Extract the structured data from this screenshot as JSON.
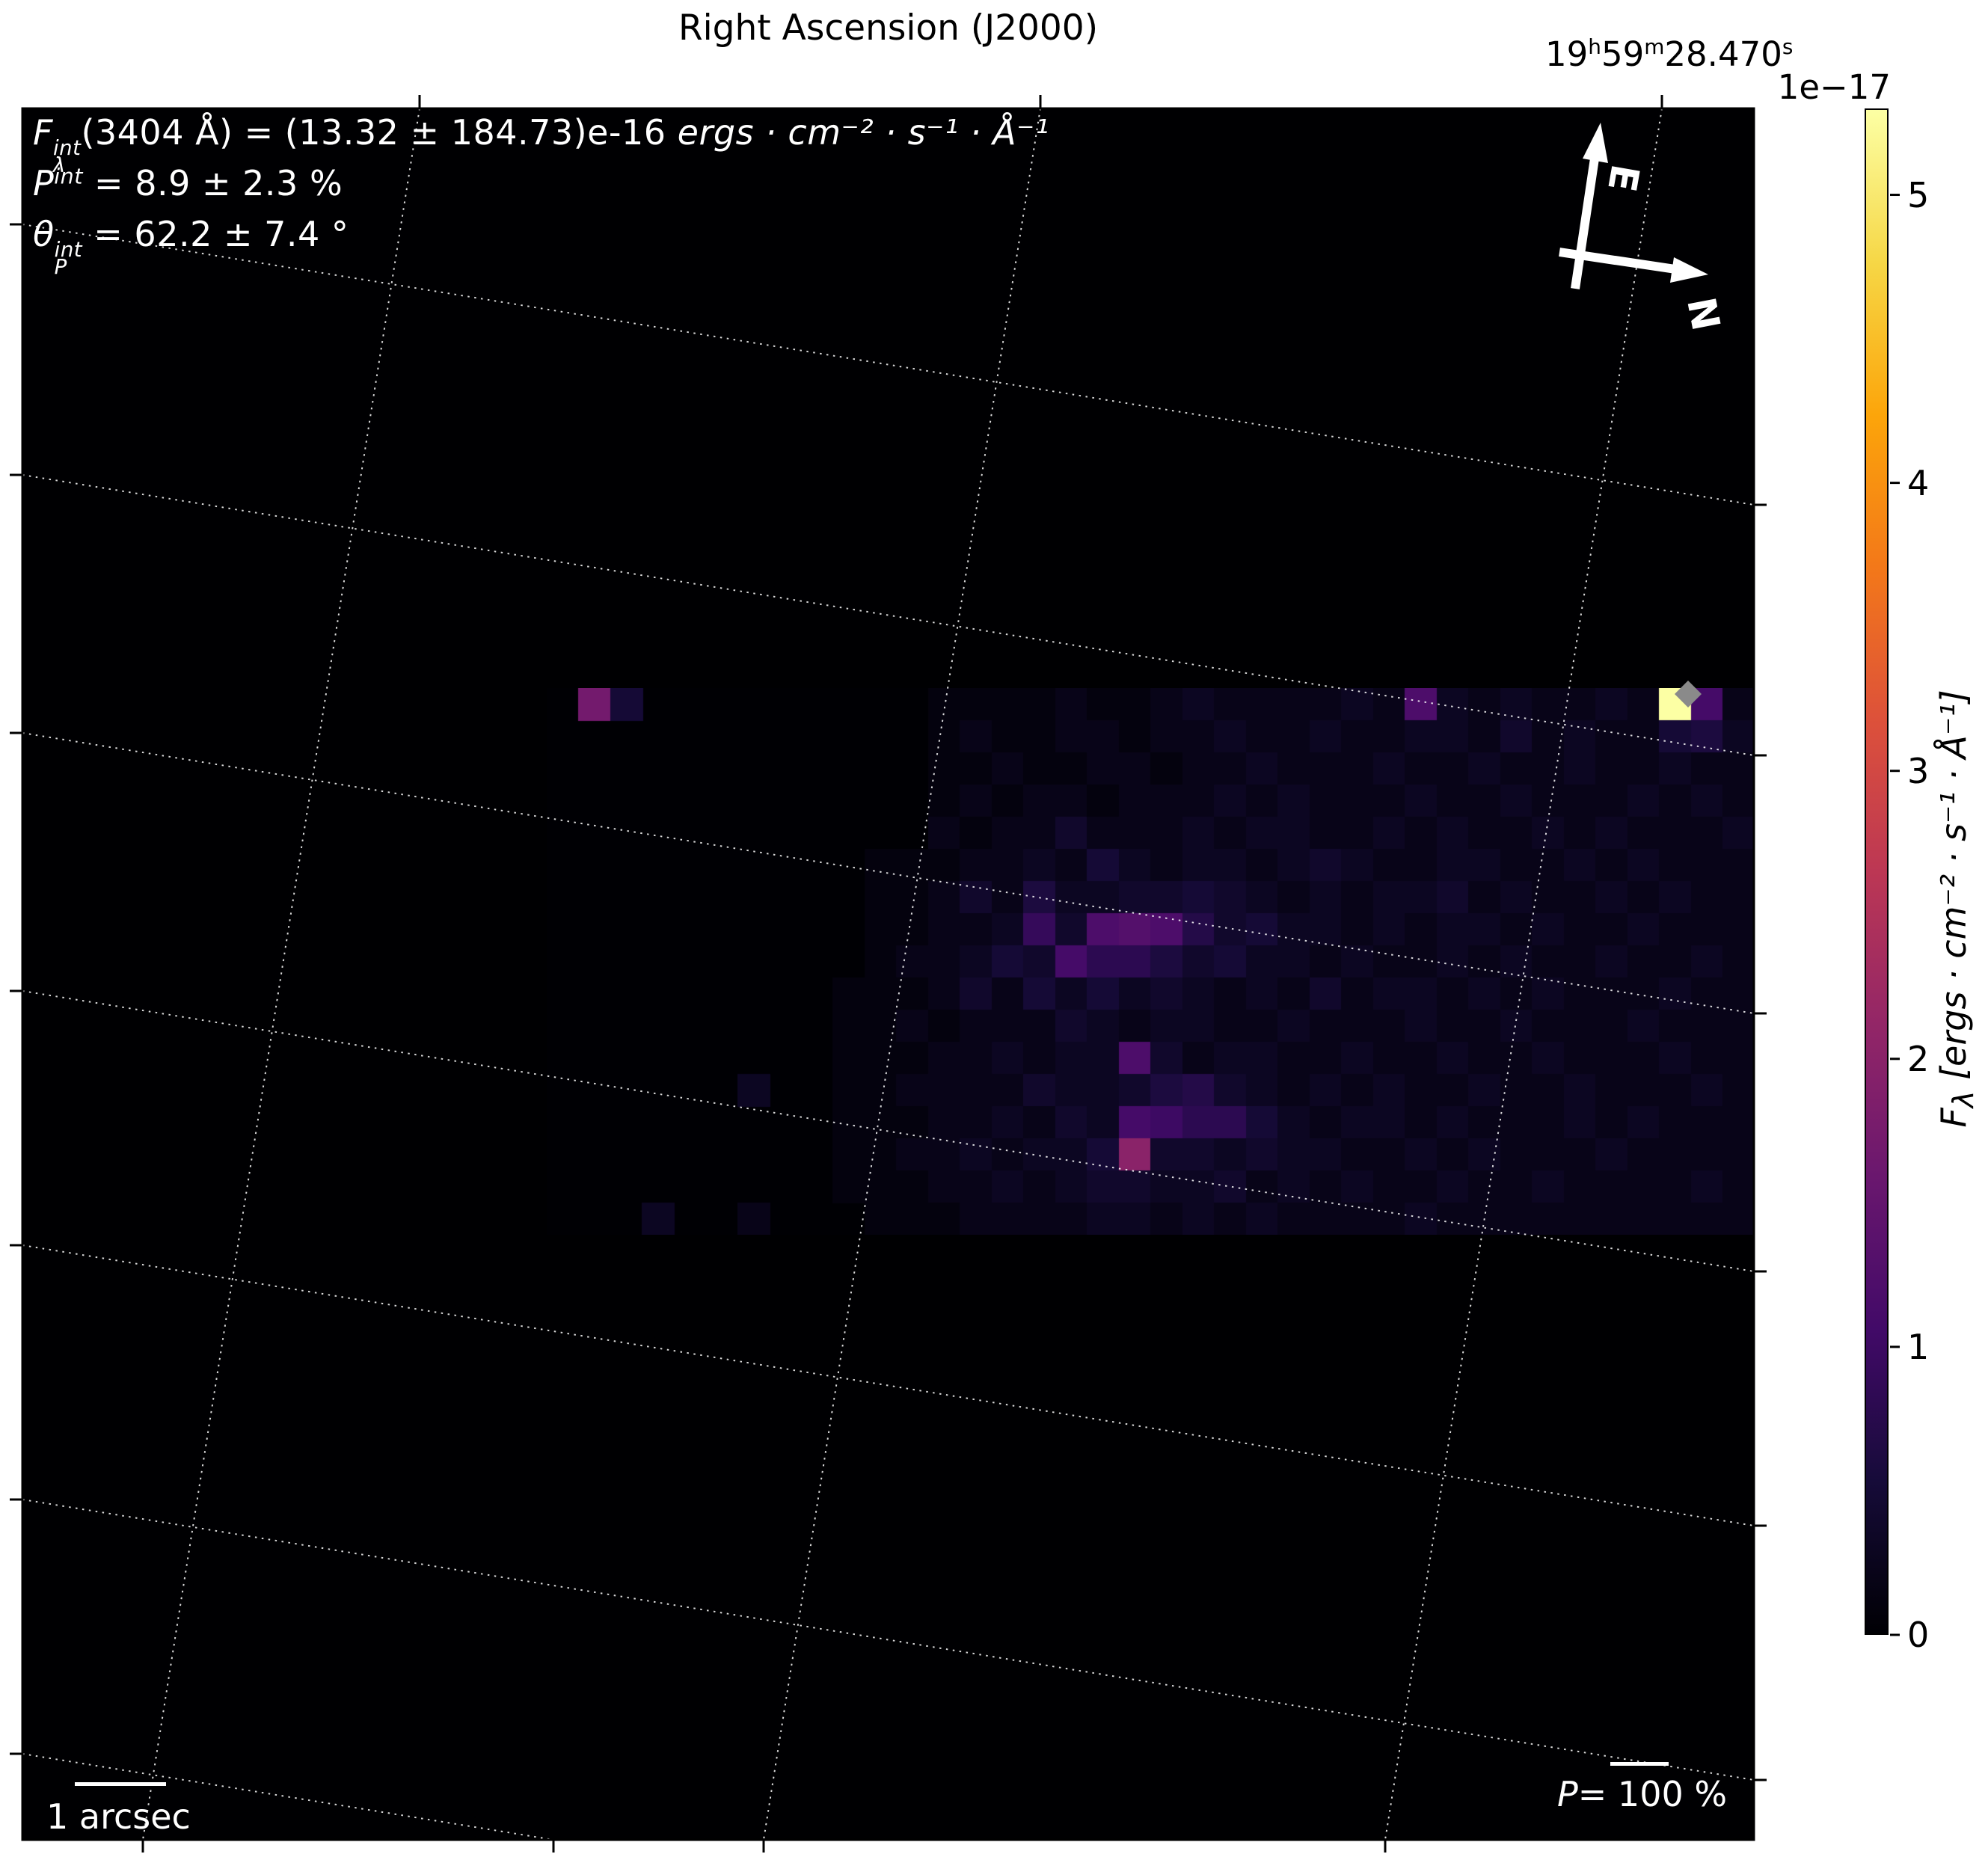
{
  "title": "Right Ascension (J2000)",
  "ra_tick": {
    "h": "19",
    "h_unit": "h",
    "m": "59",
    "m_unit": "m",
    "s": "28.470",
    "s_unit": "s"
  },
  "annotations": {
    "flux": {
      "sym": "F",
      "sup": "int",
      "sub": "λ",
      "rest": "(3404 Å) = (13.32 ± 184.73)e-16 ",
      "units": "ergs · cm⁻² · s⁻¹ · Å⁻¹"
    },
    "pol": {
      "sym": "P",
      "sup": "int",
      "rest": " = 8.9 ± 2.3 %"
    },
    "theta": {
      "sym": "θ",
      "sup": "int",
      "sub": "P",
      "rest": " = 62.2 ± 7.4 °"
    }
  },
  "compass": {
    "east_label": "E",
    "north_label": "N"
  },
  "scalebar": {
    "label": "1 arcsec"
  },
  "pol_scalebar": {
    "sym": "P",
    "eq": "= ",
    "value": "100",
    "suffix": " %"
  },
  "colorbar": {
    "offset_label": "1e−17",
    "ticks": [
      0,
      1,
      2,
      3,
      4,
      5
    ],
    "label_sym": "F",
    "label_sub": "λ",
    "label_units": " [ergs · cm⁻² · s⁻¹ · Å⁻¹]"
  },
  "chart_data": {
    "type": "heatmap",
    "title": "Right Ascension (J2000)",
    "colorbar_label": "F_lambda [ergs · cm⁻² · s⁻¹ · Å⁻¹]",
    "colormap": "inferno",
    "value_unit_1e18": "flux values are in units of 1e-18 ergs·cm⁻²·s⁻¹·Å⁻¹",
    "vmin_1e18": 0,
    "vmax_1e18": 53,
    "ra_axis_tick": "19h59m28.470s",
    "integrated_flux": "(13.32 ± 184.73)e-16 ergs·cm⁻²·s⁻¹·Å⁻¹ at 3404 Å",
    "integrated_polarization_percent": "8.9 ± 2.3",
    "polarization_angle_deg": "62.2 ± 7.4",
    "n_cols": 38,
    "n_rows": 17,
    "marker": {
      "shape": "diamond",
      "color": "#8a8a8a",
      "cell_col": 35,
      "cell_row": 0
    },
    "colormap_stops": [
      [
        0.0,
        "#000004"
      ],
      [
        0.1,
        "#160b39"
      ],
      [
        0.2,
        "#420a68"
      ],
      [
        0.3,
        "#6a176e"
      ],
      [
        0.4,
        "#932667"
      ],
      [
        0.5,
        "#bc3754"
      ],
      [
        0.6,
        "#dd513a"
      ],
      [
        0.7,
        "#f37819"
      ],
      [
        0.8,
        "#fca50a"
      ],
      [
        0.9,
        "#f6d746"
      ],
      [
        1.0,
        "#fcffa4"
      ]
    ],
    "values": [
      [
        0,
        17,
        5,
        0,
        0,
        0,
        0,
        0,
        0,
        0,
        0,
        0,
        1,
        1,
        1,
        1,
        2,
        1,
        1,
        2,
        3,
        2,
        2,
        2,
        2,
        3,
        2,
        12,
        3,
        2,
        3,
        2,
        2,
        3,
        2,
        53,
        11,
        2
      ],
      [
        0,
        0,
        0,
        0,
        0,
        0,
        0,
        0,
        0,
        0,
        0,
        0,
        1,
        2,
        1,
        1,
        2,
        2,
        1,
        2,
        2,
        3,
        2,
        2,
        3,
        2,
        2,
        3,
        3,
        2,
        4,
        2,
        3,
        2,
        2,
        5,
        6,
        3
      ],
      [
        0,
        0,
        0,
        0,
        0,
        0,
        0,
        0,
        0,
        0,
        0,
        0,
        1,
        1,
        2,
        1,
        1,
        2,
        2,
        1,
        2,
        2,
        3,
        2,
        2,
        2,
        3,
        2,
        2,
        3,
        2,
        2,
        3,
        2,
        2,
        3,
        2,
        2
      ],
      [
        0,
        0,
        0,
        0,
        0,
        0,
        0,
        0,
        0,
        0,
        0,
        0,
        1,
        2,
        1,
        2,
        2,
        1,
        2,
        2,
        2,
        3,
        2,
        3,
        2,
        2,
        2,
        3,
        2,
        2,
        3,
        2,
        2,
        2,
        3,
        2,
        3,
        2
      ],
      [
        0,
        0,
        0,
        0,
        0,
        0,
        0,
        0,
        0,
        0,
        0,
        0,
        2,
        1,
        2,
        2,
        4,
        2,
        2,
        2,
        3,
        2,
        3,
        3,
        2,
        2,
        3,
        2,
        3,
        2,
        2,
        3,
        2,
        3,
        2,
        2,
        2,
        3
      ],
      [
        0,
        0,
        0,
        0,
        0,
        0,
        0,
        0,
        0,
        0,
        1,
        1,
        1,
        2,
        2,
        3,
        2,
        5,
        3,
        2,
        3,
        3,
        2,
        3,
        4,
        3,
        2,
        2,
        3,
        3,
        2,
        2,
        3,
        2,
        3,
        2,
        2,
        2
      ],
      [
        0,
        0,
        0,
        0,
        0,
        0,
        0,
        0,
        0,
        0,
        1,
        1,
        2,
        4,
        2,
        6,
        3,
        3,
        4,
        4,
        5,
        4,
        3,
        2,
        3,
        2,
        3,
        3,
        4,
        2,
        3,
        2,
        2,
        3,
        2,
        3,
        2,
        2
      ],
      [
        0,
        0,
        0,
        0,
        0,
        0,
        0,
        0,
        0,
        0,
        1,
        1,
        2,
        2,
        3,
        9,
        4,
        12,
        13,
        12,
        7,
        4,
        5,
        3,
        3,
        2,
        3,
        2,
        3,
        3,
        2,
        3,
        2,
        2,
        3,
        2,
        2,
        2
      ],
      [
        0,
        0,
        0,
        0,
        0,
        0,
        0,
        0,
        0,
        0,
        1,
        2,
        2,
        3,
        5,
        4,
        11,
        8,
        8,
        6,
        4,
        5,
        3,
        3,
        2,
        3,
        2,
        2,
        3,
        2,
        3,
        2,
        2,
        3,
        2,
        2,
        3,
        2
      ],
      [
        0,
        0,
        0,
        0,
        0,
        0,
        0,
        0,
        0,
        1,
        1,
        1,
        2,
        4,
        2,
        5,
        3,
        5,
        3,
        4,
        3,
        2,
        3,
        2,
        4,
        2,
        3,
        3,
        2,
        3,
        2,
        3,
        2,
        2,
        2,
        3,
        2,
        2
      ],
      [
        0,
        0,
        0,
        0,
        0,
        0,
        0,
        0,
        0,
        1,
        1,
        2,
        1,
        2,
        2,
        2,
        4,
        3,
        2,
        3,
        3,
        2,
        2,
        3,
        2,
        2,
        2,
        3,
        2,
        2,
        3,
        2,
        2,
        2,
        3,
        2,
        2,
        2
      ],
      [
        0,
        0,
        0,
        0,
        0,
        0,
        0,
        0,
        0,
        1,
        1,
        1,
        2,
        2,
        3,
        2,
        3,
        3,
        12,
        4,
        2,
        3,
        3,
        2,
        2,
        3,
        2,
        2,
        3,
        2,
        2,
        3,
        2,
        2,
        2,
        3,
        2,
        2
      ],
      [
        0,
        0,
        0,
        0,
        0,
        0,
        3,
        0,
        0,
        1,
        1,
        2,
        2,
        2,
        2,
        4,
        3,
        3,
        4,
        6,
        7,
        4,
        3,
        2,
        3,
        2,
        3,
        2,
        2,
        3,
        2,
        2,
        3,
        2,
        2,
        2,
        3,
        2
      ],
      [
        0,
        0,
        0,
        0,
        0,
        0,
        0,
        0,
        0,
        1,
        1,
        1,
        2,
        2,
        3,
        2,
        4,
        3,
        11,
        10,
        8,
        8,
        5,
        3,
        2,
        3,
        3,
        2,
        3,
        2,
        2,
        2,
        3,
        2,
        3,
        2,
        2,
        2
      ],
      [
        0,
        0,
        0,
        0,
        0,
        0,
        0,
        0,
        0,
        1,
        1,
        2,
        2,
        3,
        2,
        3,
        3,
        5,
        20,
        4,
        4,
        3,
        4,
        3,
        3,
        2,
        2,
        3,
        2,
        3,
        2,
        2,
        2,
        3,
        2,
        2,
        2,
        2
      ],
      [
        0,
        0,
        0,
        0,
        0,
        0,
        0,
        0,
        0,
        1,
        1,
        1,
        2,
        2,
        3,
        2,
        3,
        4,
        4,
        3,
        3,
        4,
        2,
        3,
        2,
        3,
        2,
        2,
        3,
        2,
        2,
        3,
        2,
        2,
        2,
        2,
        3,
        2
      ],
      [
        0,
        0,
        0,
        3,
        0,
        0,
        2,
        0,
        0,
        0,
        1,
        1,
        1,
        2,
        2,
        2,
        2,
        3,
        3,
        2,
        3,
        2,
        3,
        2,
        2,
        2,
        2,
        3,
        2,
        2,
        2,
        2,
        2,
        2,
        2,
        2,
        2,
        2
      ]
    ]
  }
}
